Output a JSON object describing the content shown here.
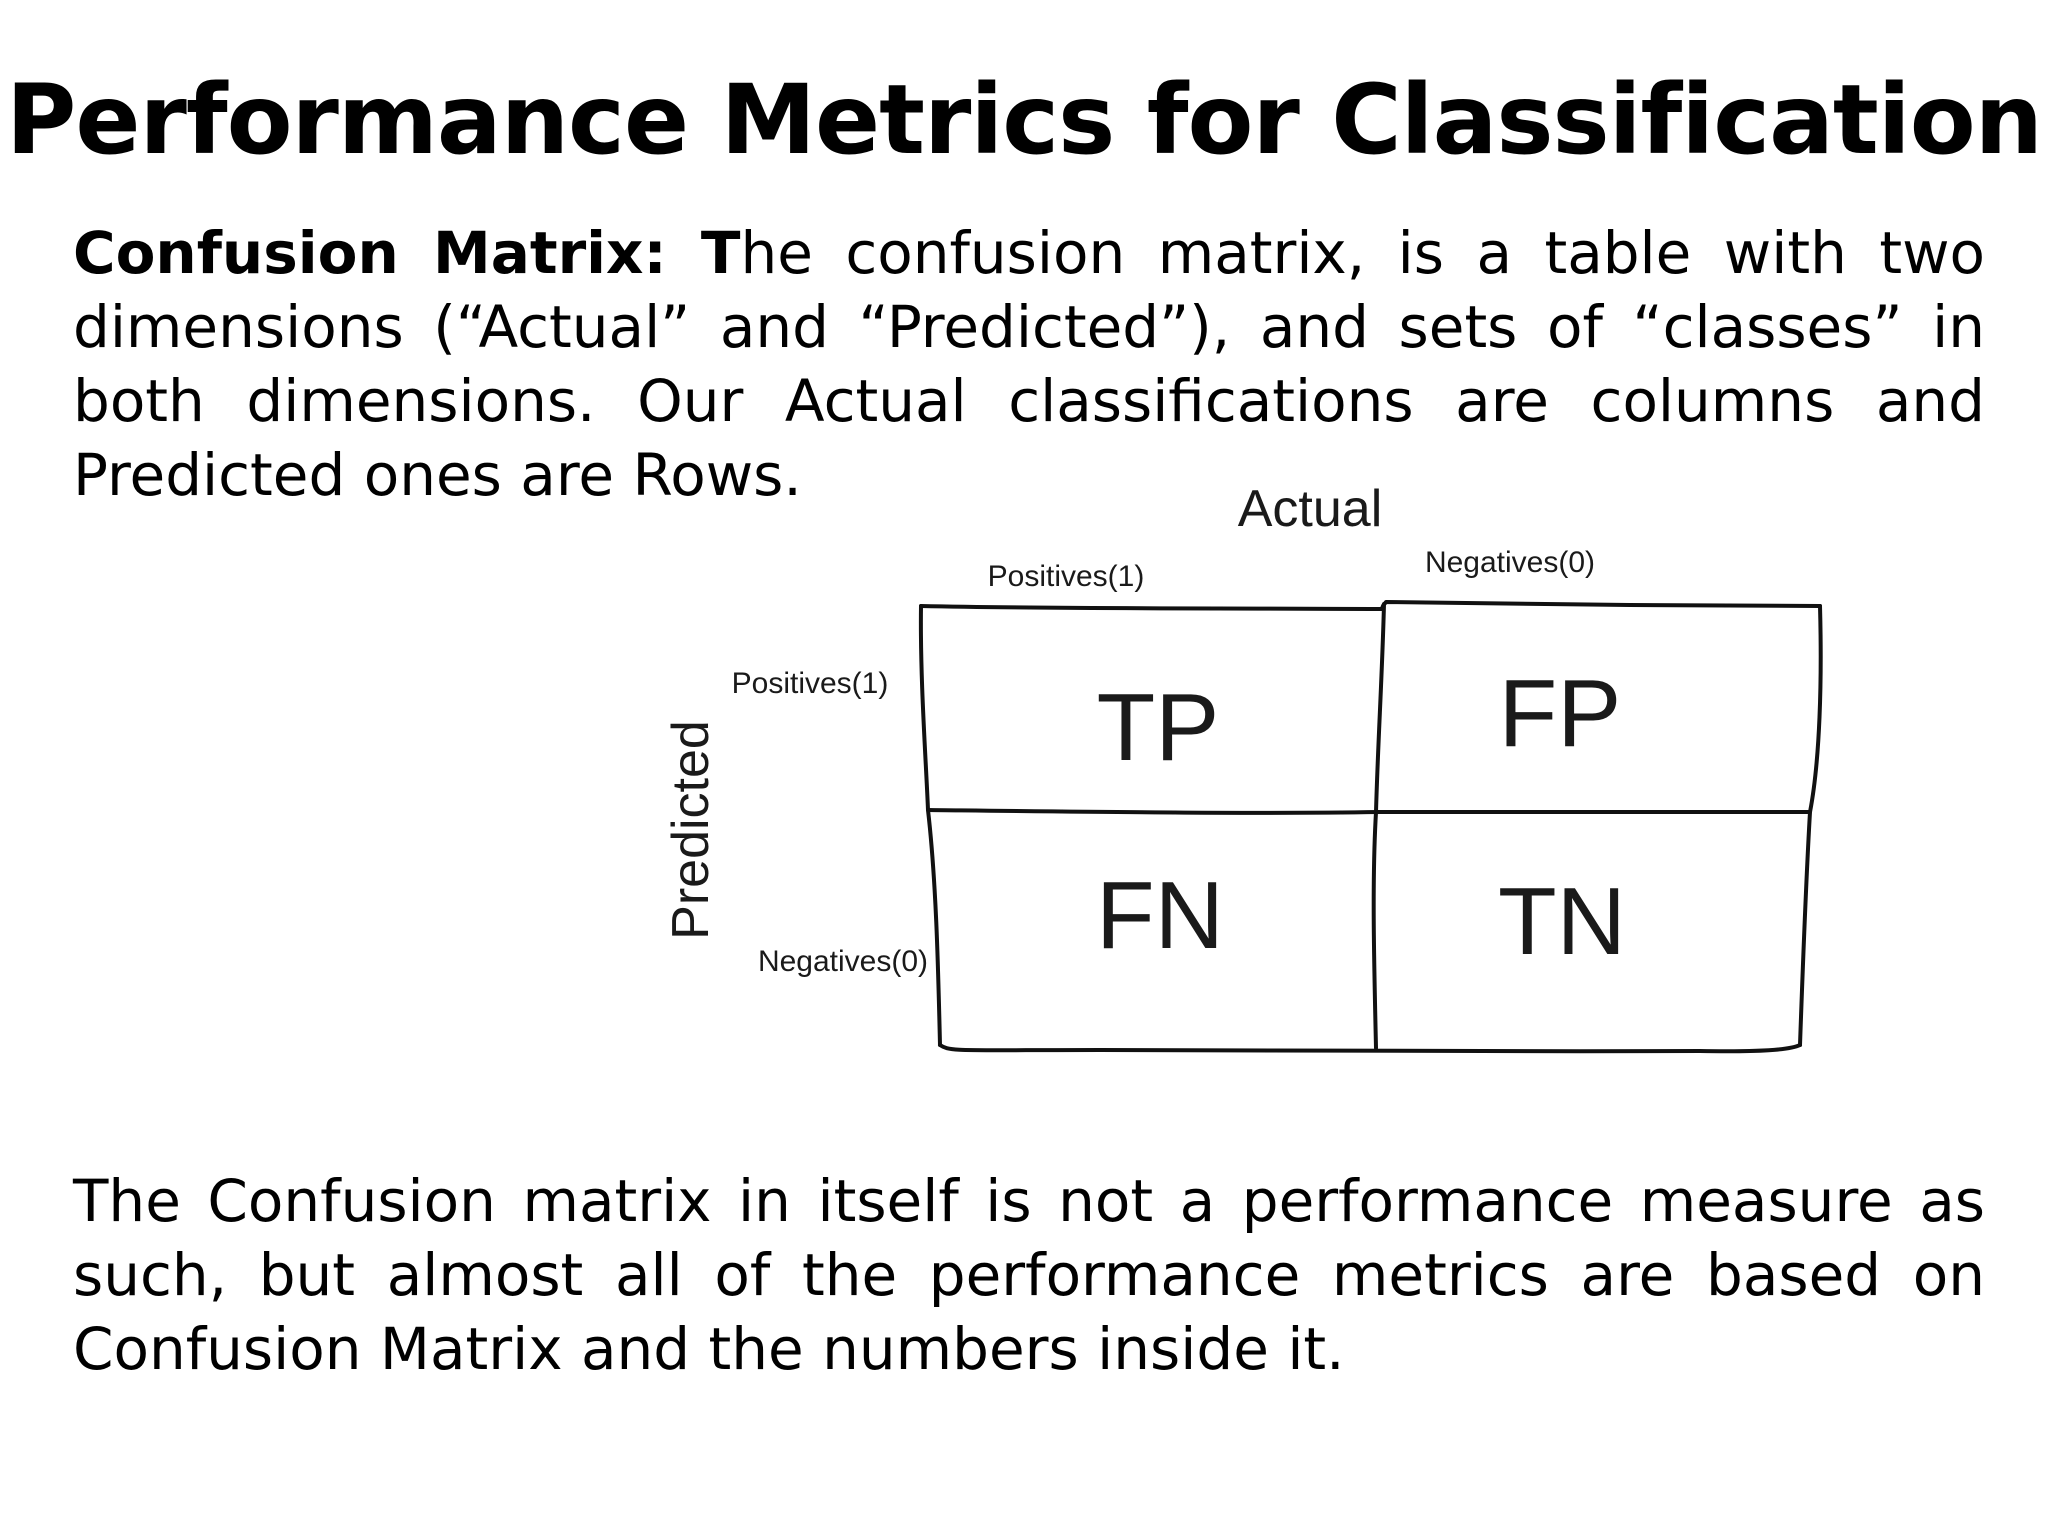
{
  "slide": {
    "title": "Performance Metrics for Classification"
  },
  "intro": {
    "term": "Confusion Matrix: T",
    "text": "he confusion matrix, is a table with two dimensions (“Actual” and “Predicted”), and sets of “classes” in both dimensions. Our Actual classifications are columns and Predicted ones are Rows."
  },
  "matrix": {
    "actual_label": "Actual",
    "predicted_label": "Predicted",
    "columns": [
      "Positives(1)",
      "Negatives(0)"
    ],
    "rows": [
      "Positives(1)",
      "Negatives(0)"
    ],
    "cells": [
      [
        "TP",
        "FP"
      ],
      [
        "FN",
        "TN"
      ]
    ]
  },
  "outro": {
    "text": "The Confusion matrix in itself is not a performance measure as such, but almost all of the performance metrics are based on Confusion Matrix and the numbers inside it."
  }
}
